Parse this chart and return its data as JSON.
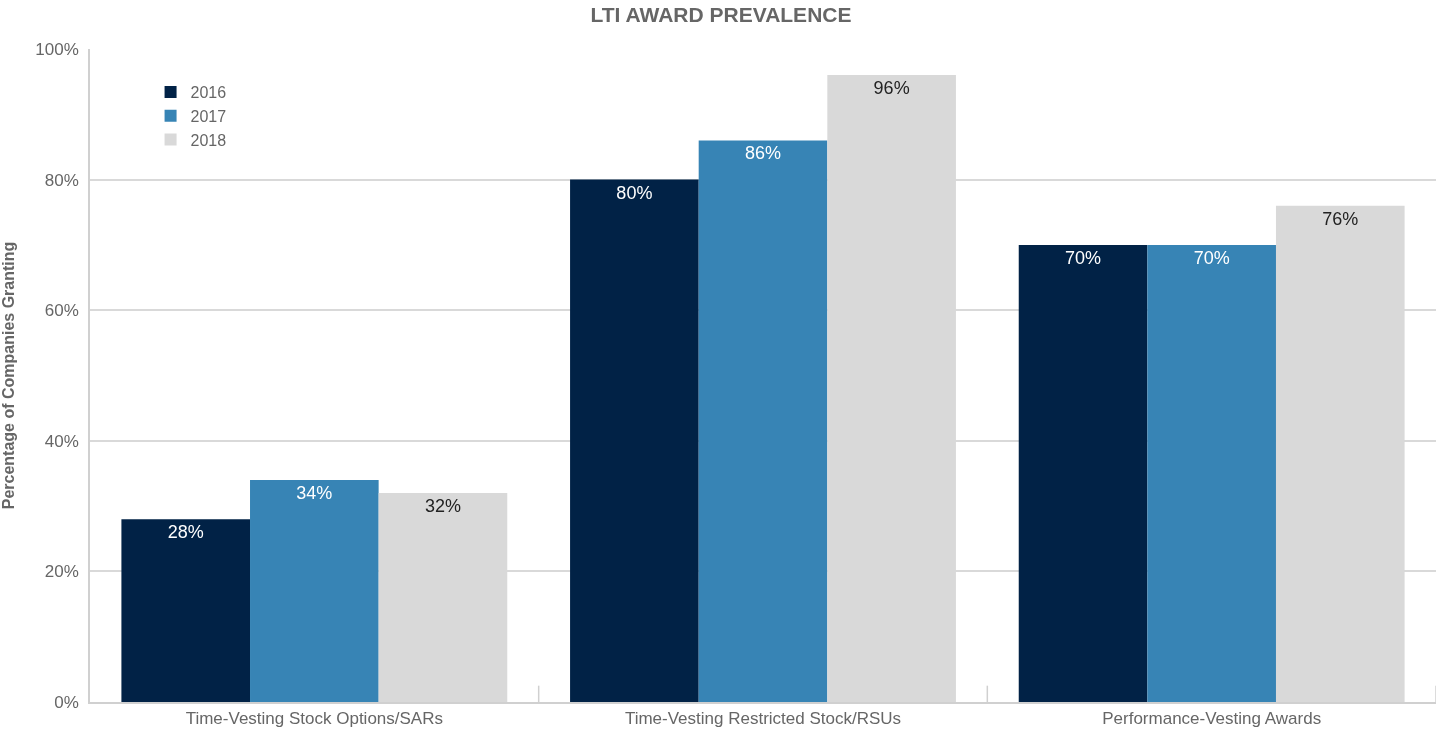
{
  "chart_data": {
    "type": "bar",
    "title": "LTI AWARD PREVALENCE",
    "ylabel": "Percentage of Companies Granting",
    "categories": [
      "Time-Vesting Stock Options/SARs",
      "Time-Vesting Restricted Stock/RSUs",
      "Performance-Vesting Awards"
    ],
    "series": [
      {
        "name": "2016",
        "color": "#012246",
        "values": [
          28,
          80,
          70
        ],
        "value_labels": [
          "28%",
          "80%",
          "70%"
        ]
      },
      {
        "name": "2017",
        "color": "#3784b5",
        "values": [
          34,
          86,
          70
        ],
        "value_labels": [
          "34%",
          "86%",
          "70%"
        ]
      },
      {
        "name": "2018",
        "color": "#d9d9d9",
        "values": [
          32,
          96,
          76
        ],
        "value_labels": [
          "32%",
          "96%",
          "76%"
        ]
      }
    ],
    "ylim": [
      0,
      100
    ],
    "yticks": [
      {
        "value": 0,
        "label": "0%"
      },
      {
        "value": 20,
        "label": "20%"
      },
      {
        "value": 40,
        "label": "40%"
      },
      {
        "value": 60,
        "label": "60%"
      },
      {
        "value": 80,
        "label": "80%"
      },
      {
        "value": 100,
        "label": "100%"
      }
    ],
    "grid": "y",
    "legend": "top left"
  }
}
